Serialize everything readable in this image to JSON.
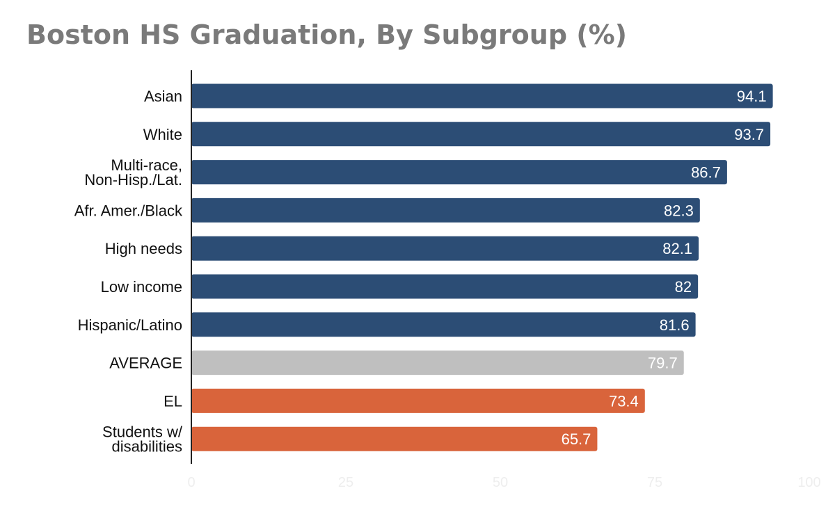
{
  "chart_data": {
    "type": "bar",
    "orientation": "horizontal",
    "title": "Boston HS Graduation, By Subgroup (%)",
    "categories": [
      "Asian",
      "White",
      "Multi-race,\nNon-Hisp./Lat.",
      "Afr. Amer./Black",
      "High needs",
      "Low income",
      "Hispanic/Latino",
      "AVERAGE",
      "EL",
      "Students w/\ndisabilities"
    ],
    "values": [
      94.1,
      93.7,
      86.7,
      82.3,
      82.1,
      82,
      81.6,
      79.7,
      73.4,
      65.7
    ],
    "value_labels": [
      "94.1",
      "93.7",
      "86.7",
      "82.3",
      "82.1",
      "82",
      "81.6",
      "79.7",
      "73.4",
      "65.7"
    ],
    "colors": [
      "#2c4d75",
      "#2c4d75",
      "#2c4d75",
      "#2c4d75",
      "#2c4d75",
      "#2c4d75",
      "#2c4d75",
      "#bfbfbf",
      "#d9643b",
      "#d9643b"
    ],
    "xlim": [
      0,
      100
    ],
    "xticks": [
      "0",
      "25",
      "50",
      "75",
      "100"
    ],
    "xlabel": "",
    "ylabel": "",
    "grid": false,
    "legend": false
  }
}
